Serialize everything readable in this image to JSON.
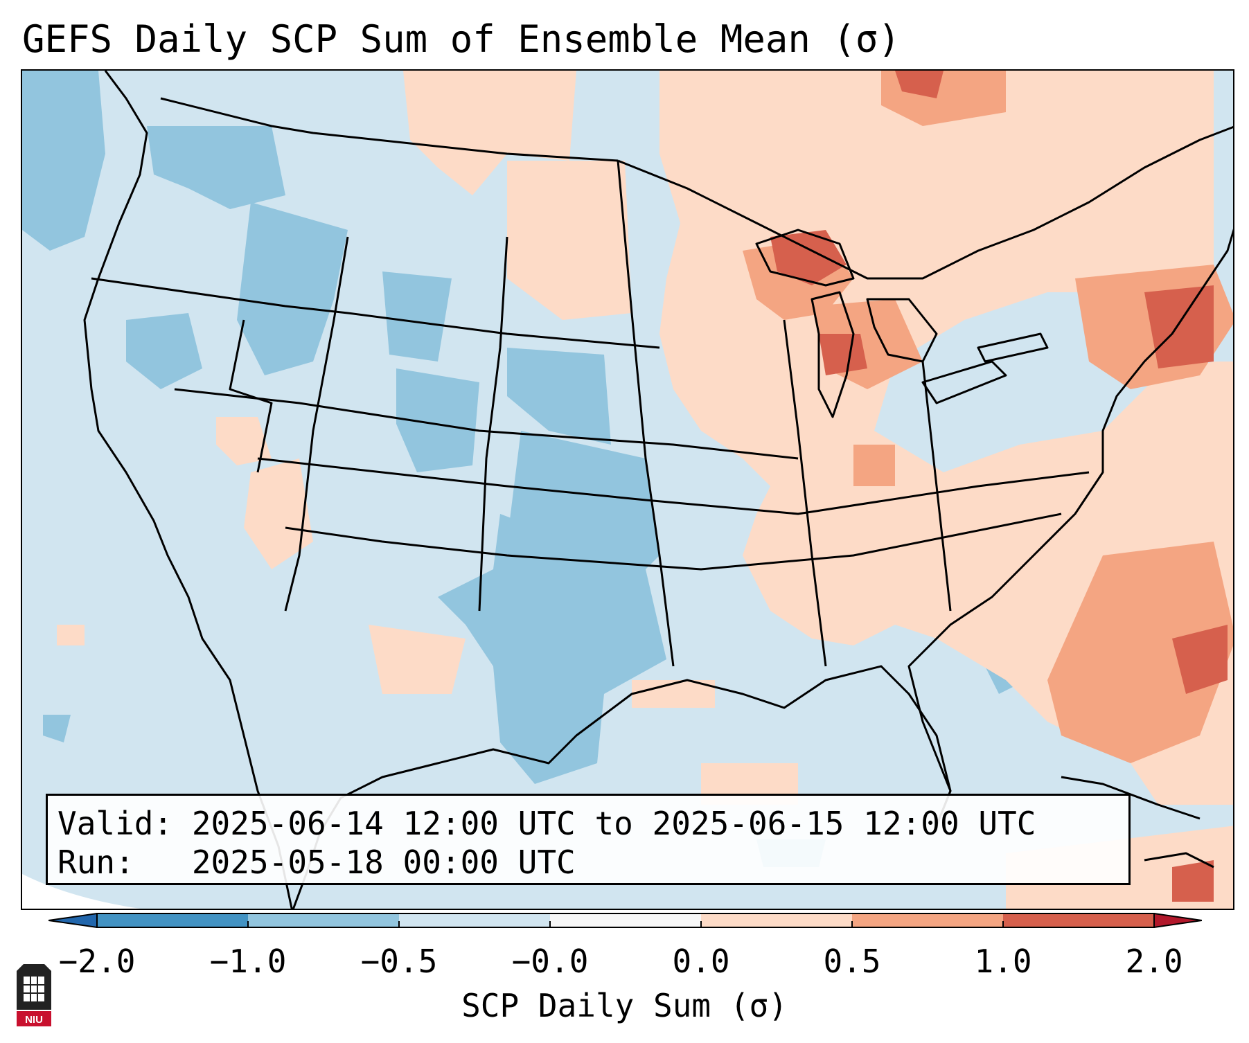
{
  "title": "GEFS Daily SCP Sum of Ensemble Mean (σ)",
  "info": {
    "valid_line": "Valid: 2025-06-14 12:00 UTC to 2025-06-15 12:00 UTC",
    "run_line": "Run:   2025-05-18 00:00 UTC"
  },
  "colorbar": {
    "label": "SCP Daily Sum (σ)",
    "ticks": [
      "−2.0",
      "−1.0",
      "−0.5",
      "−0.0",
      "0.0",
      "0.5",
      "1.0",
      "2.0"
    ],
    "colors": [
      "#4393c3",
      "#92c5de",
      "#d1e5f0",
      "#f7f7f7",
      "#fddbc7",
      "#f4a582",
      "#d6604d"
    ],
    "under_color": "#2166ac",
    "over_color": "#b2182b"
  },
  "logo": {
    "text": "NIU",
    "icon": "niu-university-logo-icon"
  }
}
